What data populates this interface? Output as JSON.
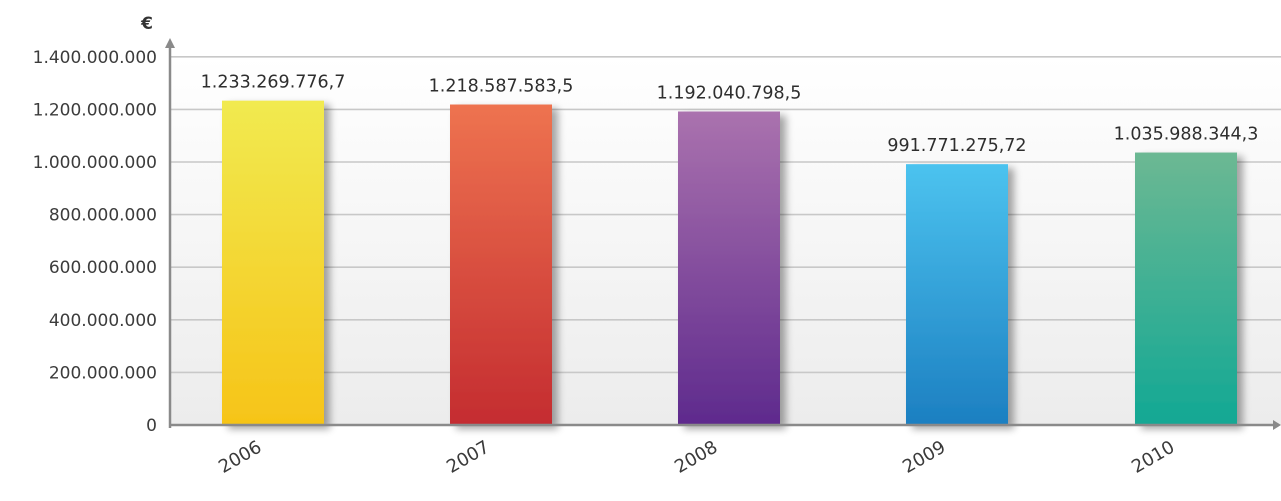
{
  "chart_data": {
    "type": "bar",
    "ylabel": "€",
    "categories": [
      "2006",
      "2007",
      "2008",
      "2009",
      "2010"
    ],
    "values": [
      1233269776.7,
      1218587583.5,
      1192040798.5,
      991771275.72,
      1035988344.3
    ],
    "value_labels": [
      "1.233.269.776,7",
      "1.218.587.583,5",
      "1.192.040.798,5",
      "991.771.275,72",
      "1.035.988.344,3"
    ],
    "bar_colors": [
      [
        "#f1ea50",
        "#f6c418"
      ],
      [
        "#ee7350",
        "#c42c30"
      ],
      [
        "#aa72ae",
        "#5e2a8d"
      ],
      [
        "#4cc3ef",
        "#1c7fc1"
      ],
      [
        "#6cb893",
        "#12a894"
      ]
    ],
    "yticks": [
      0,
      200000000,
      400000000,
      600000000,
      800000000,
      1000000000,
      1200000000,
      1400000000
    ],
    "ytick_labels": [
      "0",
      "200.000.000",
      "400.000.000",
      "600.000.000",
      "800.000.000",
      "1.000.000.000",
      "1.200.000.000",
      "1.400.000.000"
    ],
    "ylim": [
      0,
      1400000000
    ],
    "grid": true,
    "axis_color": "#8a8a8a",
    "grid_color": "#c8c8c8"
  }
}
